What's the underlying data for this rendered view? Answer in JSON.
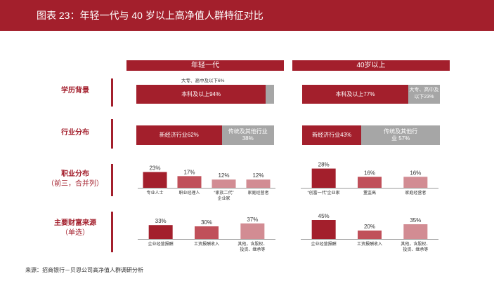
{
  "title": "图表 23：年轻一代与 40 岁以上高净值人群特征对比",
  "groups": [
    "年轻一代",
    "40岁以上"
  ],
  "rows": {
    "education": "学历背景",
    "industry": "行业分布",
    "occupation": "职业分布",
    "occupation_sub": "（前三，合并列）",
    "wealth": "主要财富来源",
    "wealth_sub": "（单选）"
  },
  "colors": {
    "dark": "#a31f2c",
    "mid": "#c0505a",
    "light": "#d28c93",
    "grey": "#a6a6a6"
  },
  "source": "来源：招商银行－贝恩公司高净值人群调研分析",
  "chart_data": [
    {
      "type": "bar",
      "name": "学历背景",
      "groups": [
        {
          "group": "年轻一代",
          "segments": [
            {
              "label": "本科及以上94%",
              "value": 94
            },
            {
              "label": "大专、高中及以下6%",
              "value": 6
            }
          ]
        },
        {
          "group": "40岁以上",
          "segments": [
            {
              "label": "本科及以上77%",
              "value": 77
            },
            {
              "label": "大专、高中及以下23%",
              "value": 23
            }
          ]
        }
      ]
    },
    {
      "type": "bar",
      "name": "行业分布",
      "groups": [
        {
          "group": "年轻一代",
          "segments": [
            {
              "label": "新经济行业62%",
              "value": 62
            },
            {
              "label": "传统及其他行业 38%",
              "value": 38
            }
          ]
        },
        {
          "group": "40岁以上",
          "segments": [
            {
              "label": "新经济行业43%",
              "value": 43
            },
            {
              "label": "传统及其他行业 57%",
              "value": 57
            }
          ]
        }
      ]
    },
    {
      "type": "bar",
      "name": "职业分布（前三，合并列）",
      "groups": [
        {
          "group": "年轻一代",
          "categories": [
            "专业人士",
            "职业经理人",
            "“家族二代”企业家",
            "家庭经营者"
          ],
          "values": [
            23,
            17,
            12,
            12
          ]
        },
        {
          "group": "40岁以上",
          "categories": [
            "“创富一代”企业家",
            "董监高",
            "家庭经营者"
          ],
          "values": [
            28,
            16,
            16
          ]
        }
      ]
    },
    {
      "type": "bar",
      "name": "主要财富来源（单选）",
      "groups": [
        {
          "group": "年轻一代",
          "categories": [
            "企业经营报酬",
            "工资报酬收入",
            "其他，含股权、投资、继承等"
          ],
          "values": [
            33,
            30,
            37
          ]
        },
        {
          "group": "40岁以上",
          "categories": [
            "企业经营报酬",
            "工资报酬收入",
            "其他，含股权、投资、继承等"
          ],
          "values": [
            45,
            20,
            35
          ]
        }
      ]
    }
  ]
}
